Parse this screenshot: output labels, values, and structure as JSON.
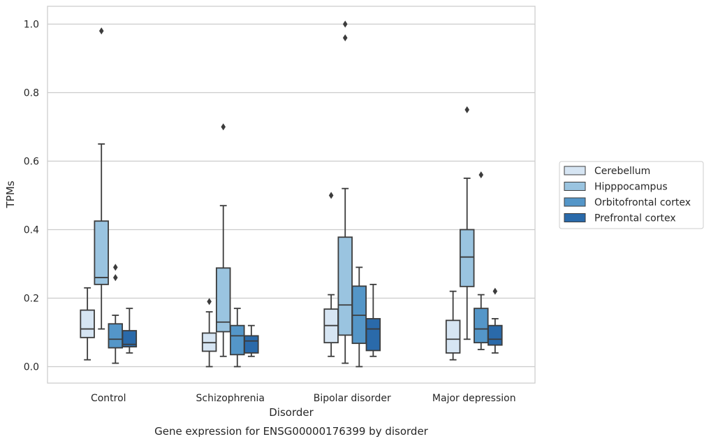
{
  "chart_data": {
    "type": "boxplot",
    "title": "",
    "caption": "Gene expression for ENSG00000176399 by disorder",
    "xlabel": "Disorder",
    "ylabel": "TPMs",
    "ylim": [
      -0.048,
      1.052
    ],
    "yticks": [
      0.0,
      0.2,
      0.4,
      0.6,
      0.8,
      1.0
    ],
    "ytick_labels": [
      "0.0",
      "0.2",
      "0.4",
      "0.6",
      "0.8",
      "1.0"
    ],
    "grid": "horizontal",
    "legend_position": "right",
    "categories": [
      "Control",
      "Schizophrenia",
      "Bipolar disorder",
      "Major depression"
    ],
    "series": [
      {
        "name": "Cerebellum",
        "color": "#d6e5f3",
        "boxes": [
          {
            "whisker_low": 0.02,
            "q1": 0.085,
            "median": 0.11,
            "q3": 0.165,
            "whisker_high": 0.23,
            "outliers": []
          },
          {
            "whisker_low": 0.0,
            "q1": 0.045,
            "median": 0.07,
            "q3": 0.098,
            "whisker_high": 0.16,
            "outliers": [
              0.19
            ]
          },
          {
            "whisker_low": 0.03,
            "q1": 0.07,
            "median": 0.12,
            "q3": 0.168,
            "whisker_high": 0.21,
            "outliers": [
              0.5
            ]
          },
          {
            "whisker_low": 0.02,
            "q1": 0.04,
            "median": 0.08,
            "q3": 0.135,
            "whisker_high": 0.22,
            "outliers": []
          }
        ]
      },
      {
        "name": "Hipppocampus",
        "color": "#9ac4e0",
        "boxes": [
          {
            "whisker_low": 0.11,
            "q1": 0.24,
            "median": 0.26,
            "q3": 0.425,
            "whisker_high": 0.65,
            "outliers": [
              0.98
            ]
          },
          {
            "whisker_low": 0.03,
            "q1": 0.102,
            "median": 0.13,
            "q3": 0.288,
            "whisker_high": 0.47,
            "outliers": [
              0.7
            ]
          },
          {
            "whisker_low": 0.01,
            "q1": 0.092,
            "median": 0.18,
            "q3": 0.378,
            "whisker_high": 0.52,
            "outliers": [
              0.96,
              1.0
            ]
          },
          {
            "whisker_low": 0.08,
            "q1": 0.234,
            "median": 0.32,
            "q3": 0.4,
            "whisker_high": 0.55,
            "outliers": [
              0.75
            ]
          }
        ]
      },
      {
        "name": "Orbitofrontal cortex",
        "color": "#5496c8",
        "boxes": [
          {
            "whisker_low": 0.01,
            "q1": 0.055,
            "median": 0.08,
            "q3": 0.125,
            "whisker_high": 0.15,
            "outliers": [
              0.26,
              0.29
            ]
          },
          {
            "whisker_low": 0.0,
            "q1": 0.035,
            "median": 0.09,
            "q3": 0.12,
            "whisker_high": 0.17,
            "outliers": []
          },
          {
            "whisker_low": 0.0,
            "q1": 0.068,
            "median": 0.15,
            "q3": 0.235,
            "whisker_high": 0.29,
            "outliers": []
          },
          {
            "whisker_low": 0.05,
            "q1": 0.07,
            "median": 0.11,
            "q3": 0.17,
            "whisker_high": 0.21,
            "outliers": [
              0.56
            ]
          }
        ]
      },
      {
        "name": "Prefrontal cortex",
        "color": "#2a6aaa",
        "boxes": [
          {
            "whisker_low": 0.04,
            "q1": 0.058,
            "median": 0.065,
            "q3": 0.105,
            "whisker_high": 0.17,
            "outliers": []
          },
          {
            "whisker_low": 0.03,
            "q1": 0.04,
            "median": 0.075,
            "q3": 0.09,
            "whisker_high": 0.12,
            "outliers": []
          },
          {
            "whisker_low": 0.03,
            "q1": 0.047,
            "median": 0.11,
            "q3": 0.14,
            "whisker_high": 0.24,
            "outliers": []
          },
          {
            "whisker_low": 0.04,
            "q1": 0.063,
            "median": 0.08,
            "q3": 0.12,
            "whisker_high": 0.14,
            "outliers": [
              0.22
            ]
          }
        ]
      }
    ]
  }
}
